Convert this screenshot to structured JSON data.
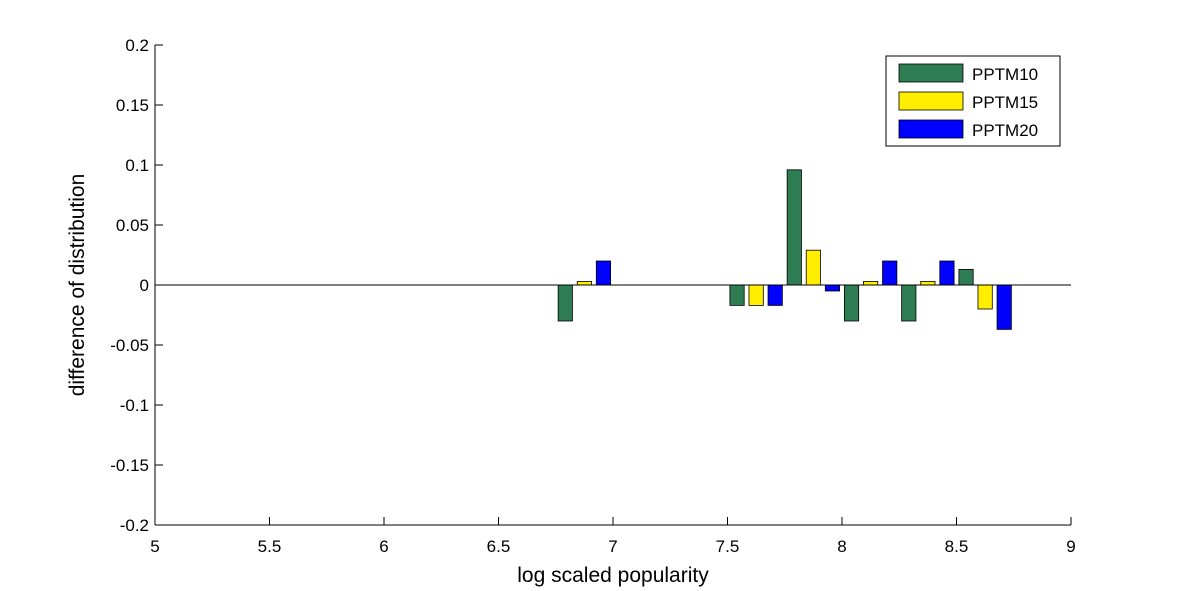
{
  "chart_data": {
    "type": "bar",
    "title": "",
    "xlabel": "log scaled popularity",
    "ylabel": "difference of distribution",
    "xlim": [
      5,
      9
    ],
    "ylim": [
      -0.2,
      0.2
    ],
    "xticks": [
      "5",
      "5.5",
      "6",
      "6.5",
      "7",
      "7.5",
      "8",
      "8.5",
      "9"
    ],
    "yticks": [
      "0.2",
      "0.15",
      "0.1",
      "0.05",
      "0",
      "-0.05",
      "-0.1",
      "-0.15",
      "-0.2"
    ],
    "x": [
      6.875,
      7.625,
      7.875,
      8.125,
      8.375,
      8.625
    ],
    "series": [
      {
        "name": "PPTM10",
        "color": "#2e7d52",
        "values": [
          -0.03,
          -0.017,
          0.096,
          -0.03,
          -0.03,
          0.013
        ]
      },
      {
        "name": "PPTM15",
        "color": "#ffee00",
        "values": [
          0.003,
          -0.017,
          0.029,
          0.003,
          0.003,
          -0.02
        ]
      },
      {
        "name": "PPTM20",
        "color": "#0000ff",
        "values": [
          0.02,
          -0.017,
          -0.005,
          0.02,
          0.02,
          -0.037
        ]
      }
    ],
    "legend_position": "top-right",
    "grid": false
  }
}
